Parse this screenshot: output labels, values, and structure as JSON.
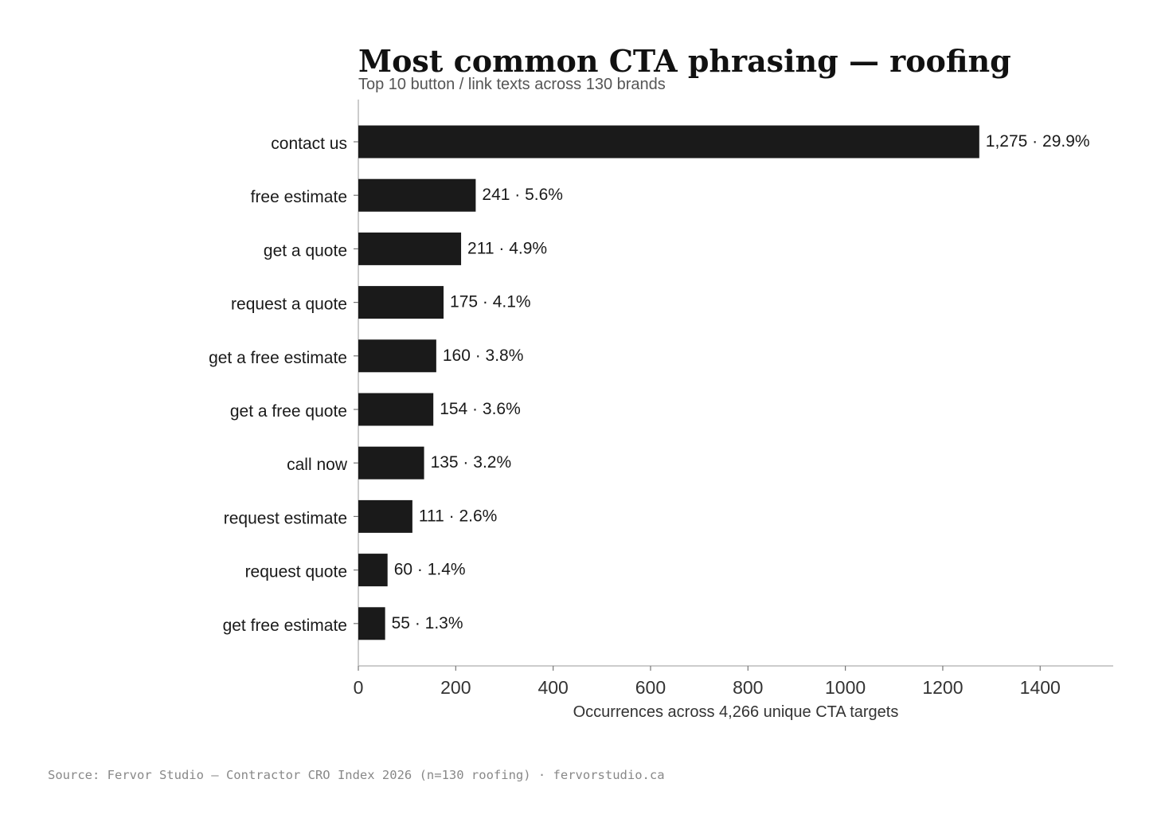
{
  "chart_data": {
    "type": "bar",
    "orientation": "horizontal",
    "title": "Most common CTA phrasing — roofing",
    "subtitle": "Top 10 button / link texts across 130 brands",
    "xlabel": "Occurrences across 4,266 unique CTA targets",
    "ylabel": "",
    "categories": [
      "contact us",
      "free estimate",
      "get a quote",
      "request a quote",
      "get a free estimate",
      "get a free quote",
      "call now",
      "request estimate",
      "request quote",
      "get free estimate"
    ],
    "values": [
      1275,
      241,
      211,
      175,
      160,
      154,
      135,
      111,
      60,
      55
    ],
    "data_labels": [
      "1,275 · 29.9%",
      "241 · 5.6%",
      "211 · 4.9%",
      "175 · 4.1%",
      "160 · 3.8%",
      "154 · 3.6%",
      "135 · 3.2%",
      "111 · 2.6%",
      "60 · 1.4%",
      "55 · 1.3%"
    ],
    "xlim": [
      0,
      1550
    ],
    "xticks": [
      0,
      200,
      400,
      600,
      800,
      1000,
      1200,
      1400
    ],
    "grid": false,
    "bar_color": "#1a1a1a",
    "axis_color": "#bbbbbb"
  },
  "footer": {
    "source": "Source: Fervor Studio — Contractor CRO Index 2026 (n=130 roofing) · fervorstudio.ca"
  }
}
